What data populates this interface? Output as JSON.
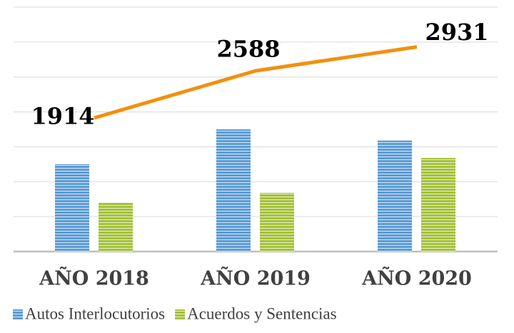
{
  "chart_data": {
    "type": "bar",
    "categories": [
      "AÑO 2018",
      "AÑO 2019",
      "AÑO 2020"
    ],
    "series": [
      {
        "name": "Autos Interlocutorios",
        "color": "#5b9bd5",
        "values": [
          1250,
          1750,
          1590
        ]
      },
      {
        "name": "Acuerdos y Sentencias",
        "color": "#a5c13a",
        "values": [
          700,
          840,
          1340
        ]
      }
    ],
    "line": {
      "type": "line",
      "color": "#f2900f",
      "values": [
        1914,
        2588,
        2931
      ]
    },
    "ylim": [
      0,
      3500
    ],
    "yticks": [
      0,
      500,
      1000,
      1500,
      2000,
      2500,
      3000,
      3500
    ],
    "grid": true,
    "legend": "bottom"
  }
}
